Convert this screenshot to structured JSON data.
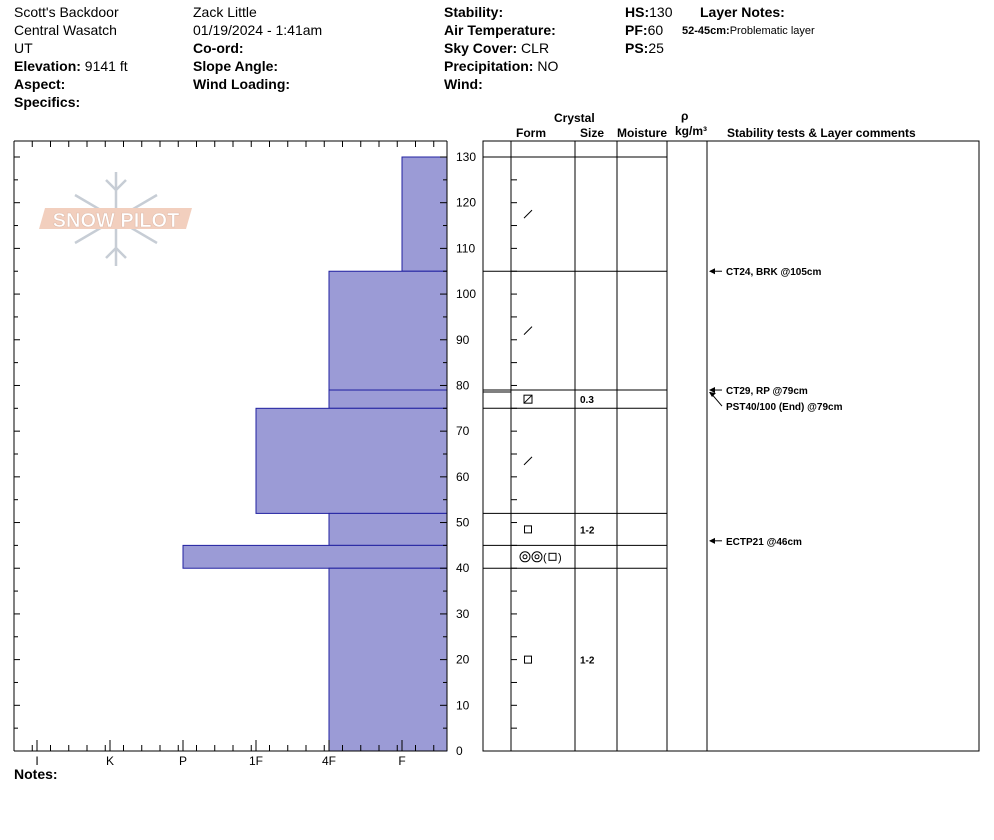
{
  "header": {
    "location": "Scott's Backdoor",
    "range": "Central Wasatch",
    "state": "UT",
    "elevation_label": "Elevation:",
    "elevation_value": "9141 ft",
    "aspect_label": "Aspect:",
    "specifics_label": "Specifics:",
    "observer": "Zack Little",
    "datetime": "01/19/2024 - 1:41am",
    "coord_label": "Co-ord:",
    "slope_label": "Slope Angle:",
    "wind_loading_label": "Wind Loading:",
    "stability_label": "Stability:",
    "air_temp_label": "Air Temperature:",
    "sky_label": "Sky Cover:",
    "sky_value": "CLR",
    "precip_label": "Precipitation:",
    "precip_value": "NO",
    "wind_label": "Wind:",
    "hs_label": "HS:",
    "hs_value": "130",
    "pf_label": "PF:",
    "pf_value": "60",
    "ps_label": "PS:",
    "ps_value": "25",
    "layer_notes_label": "Layer Notes:",
    "layer_note_range": "52-45cm:",
    "layer_note_text": "Problematic layer"
  },
  "logo_text": "SNOW PILOT",
  "column_headers": {
    "crystal": "Crystal",
    "form": "Form",
    "size": "Size",
    "moisture": "Moisture",
    "rho": "ρ",
    "density_unit": "kg/m³",
    "comments": "Stability tests & Layer comments"
  },
  "notes_label": "Notes:",
  "chart_data": {
    "type": "bar",
    "orientation": "horizontal",
    "description": "Snow pit hand hardness profile",
    "y_axis": {
      "range": [
        0,
        130
      ],
      "ticks": [
        0,
        10,
        20,
        30,
        40,
        50,
        60,
        70,
        80,
        90,
        100,
        110,
        120,
        130
      ]
    },
    "x_axis": {
      "categories": [
        "I",
        "K",
        "P",
        "1F",
        "4F",
        "F"
      ],
      "reversed": true
    },
    "layers": [
      {
        "top": 130,
        "bottom": 105,
        "hardness": "F"
      },
      {
        "top": 105,
        "bottom": 79,
        "hardness": "4F"
      },
      {
        "top": 79,
        "bottom": 75,
        "hardness": "4F"
      },
      {
        "top": 75,
        "bottom": 52,
        "hardness": "1F"
      },
      {
        "top": 52,
        "bottom": 45,
        "hardness": "4F"
      },
      {
        "top": 45,
        "bottom": 40,
        "hardness": "P"
      },
      {
        "top": 40,
        "bottom": 0,
        "hardness": "4F"
      }
    ],
    "bar_color": "#9b9bd6",
    "crystals": [
      {
        "top": 130,
        "bottom": 105,
        "form": "decomposing-fragments",
        "size": ""
      },
      {
        "top": 105,
        "bottom": 79,
        "form": "decomposing-fragments",
        "size": ""
      },
      {
        "top": 79,
        "bottom": 75,
        "form": "faceted-rounded",
        "size": "0.3"
      },
      {
        "top": 75,
        "bottom": 52,
        "form": "decomposing-fragments",
        "size": ""
      },
      {
        "top": 52,
        "bottom": 45,
        "form": "faceted",
        "size": "1-2"
      },
      {
        "top": 45,
        "bottom": 40,
        "form": "melt-forms-faceted",
        "size": ""
      },
      {
        "top": 40,
        "bottom": 0,
        "form": "faceted",
        "size": "1-2"
      }
    ],
    "stability_tests": [
      {
        "depth": 105,
        "text": "CT24, BRK @105cm"
      },
      {
        "depth": 79,
        "text": "CT29, RP @79cm"
      },
      {
        "depth": 79,
        "text": "PST40/100 (End) @79cm"
      },
      {
        "depth": 46,
        "text": "ECTP21 @46cm"
      }
    ]
  }
}
